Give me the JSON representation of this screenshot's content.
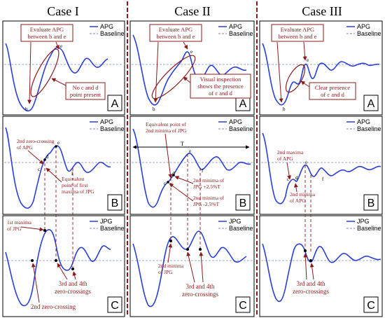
{
  "columns": [
    {
      "title": "Case I"
    },
    {
      "title": "Case II"
    },
    {
      "title": "Case III"
    }
  ],
  "legends": {
    "apg": "APG",
    "jpg": "JPG",
    "baseline": "Baseline"
  },
  "panel_letters": {
    "a": "A",
    "b": "B",
    "c": "C"
  },
  "colors": {
    "signal": "#2a3fd6",
    "annotation": "#8b1a1a",
    "divider": "#8b1a1a",
    "baseline": "#7a86c8"
  },
  "case1": {
    "A": {
      "evaluate": [
        "Evaluate APG",
        "between b and e"
      ],
      "no_cd": [
        "No c and d",
        "point present"
      ],
      "points": {
        "b": "b",
        "e": "e"
      }
    },
    "B": {
      "zero_crossing": [
        "2nd zero-crossing",
        "of APG"
      ],
      "equivalent": [
        "Equivalent",
        "point of first",
        "maxima of JPG"
      ],
      "points": {
        "c": "c",
        "d": "d",
        "e": "e",
        "f": "f"
      }
    },
    "C": {
      "first_maxima": [
        "1st maxima",
        "of JPG"
      ],
      "zc34": [
        "3rd and 4th",
        "zero-crossings"
      ],
      "zc2": "2nd zero-crossing"
    }
  },
  "case2": {
    "A": {
      "evaluate": [
        "Evaluate APG",
        "between b and e"
      ],
      "visual": [
        "Visual inspection",
        "shows the presence",
        "of c and d"
      ],
      "points": {
        "b": "b",
        "e": "e"
      }
    },
    "B": {
      "equivalent": [
        "Equivalent point of",
        "2nd minima of JPG"
      ],
      "t_label": "T",
      "minima_plus": [
        "2nd minima of",
        "JPG +2.5%T"
      ],
      "minima_minus": [
        "2nd minima of",
        "JPG -2.5%T"
      ],
      "points": {
        "c": "c",
        "d": "d",
        "e": "e",
        "f": "f"
      }
    },
    "C": {
      "second_minima": [
        "2nd minima",
        "of JPG"
      ],
      "zc34": [
        "3rd and 4th",
        "zero-crossings"
      ]
    }
  },
  "case3": {
    "A": {
      "evaluate": [
        "Evaluate APG",
        "between b and e"
      ],
      "clear": [
        "Clear presence",
        "of c and d"
      ],
      "points": {
        "b": "b",
        "e": "e"
      }
    },
    "B": {
      "maxima_apg": [
        "2nd maxima",
        "of APG"
      ],
      "minima_apg": [
        "2nd minima",
        "of APG"
      ],
      "points": {
        "c": "c",
        "d": "d",
        "e": "e",
        "f": "f"
      }
    },
    "C": {
      "zc34": [
        "3rd and 4th",
        "zero-crossings"
      ]
    }
  }
}
